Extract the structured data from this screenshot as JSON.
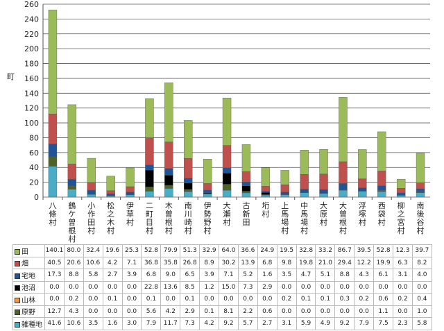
{
  "chart_data": {
    "type": "bar",
    "stacked": true,
    "ylabel": "町",
    "ylim": [
      0,
      260
    ],
    "ytick_step": 20,
    "grid": true,
    "legend": "table-below",
    "categories": [
      "八條村",
      "鶴ケ曽根村",
      "小作田村",
      "松之木村",
      "伊草村",
      "二町目村",
      "木曽根村",
      "南川崎村",
      "伊勢野村",
      "大瀬村",
      "古新田",
      "垳村",
      "上馬場村",
      "中馬場村",
      "大原村",
      "大曽根村",
      "浮塚村",
      "西袋村",
      "柳之宮村",
      "南後谷村"
    ],
    "series": [
      {
        "name": "田",
        "color": "#9bbb59",
        "values": [
          140.1,
          80.0,
          32.4,
          19.6,
          25.3,
          52.8,
          79.9,
          51.3,
          32.9,
          64.0,
          36.6,
          24.9,
          19.5,
          32.8,
          33.2,
          86.7,
          39.5,
          52.8,
          12.3,
          39.7
        ]
      },
      {
        "name": "畑",
        "color": "#c0504d",
        "values": [
          40.5,
          20.6,
          10.6,
          4.2,
          7.1,
          36.8,
          35.8,
          26.8,
          8.9,
          30.2,
          13.9,
          6.8,
          9.8,
          19.8,
          21.0,
          29.4,
          12.2,
          19.9,
          6.3,
          8.2
        ]
      },
      {
        "name": "宅地",
        "color": "#1f5597",
        "values": [
          17.3,
          8.8,
          5.8,
          2.7,
          3.9,
          6.8,
          9.0,
          6.5,
          3.9,
          7.1,
          5.2,
          1.6,
          3.5,
          4.7,
          5.1,
          8.8,
          4.3,
          6.1,
          3.1,
          4.0
        ]
      },
      {
        "name": "池沼",
        "color": "#000000",
        "values": [
          0.0,
          0.0,
          0.0,
          0.0,
          0.0,
          22.8,
          13.6,
          8.5,
          1.2,
          15.0,
          7.3,
          2.9,
          0.0,
          0.0,
          0.0,
          0.0,
          0.0,
          0.0,
          0.0,
          0.0
        ]
      },
      {
        "name": "山林",
        "color": "#f79646",
        "values": [
          0.0,
          0.2,
          0.0,
          0.1,
          0.0,
          0.1,
          0.0,
          0.1,
          0.0,
          0.0,
          0.0,
          0.0,
          0.2,
          0.1,
          0.1,
          0.3,
          0.2,
          0.6,
          0.2,
          0.4
        ]
      },
      {
        "name": "原野",
        "color": "#4f6228",
        "values": [
          12.7,
          4.3,
          0.0,
          0.0,
          0.0,
          5.6,
          4.2,
          2.9,
          0.1,
          8.1,
          2.2,
          0.6,
          0.0,
          0.0,
          0.0,
          0.0,
          0.0,
          1.1,
          0.0,
          1.0
        ]
      },
      {
        "name": "雑種地",
        "color": "#4bacc6",
        "values": [
          41.6,
          10.6,
          3.5,
          1.6,
          3.0,
          7.9,
          11.7,
          7.3,
          4.2,
          9.2,
          5.7,
          2.7,
          3.1,
          5.9,
          4.9,
          9.2,
          7.9,
          7.5,
          2.3,
          5.8
        ]
      }
    ]
  }
}
